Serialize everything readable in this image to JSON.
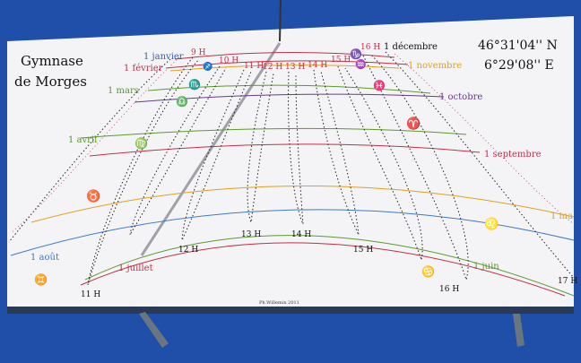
{
  "school": [
    "Gymnase",
    "de Morges"
  ],
  "coords": {
    "lat": "46°31'04'' N",
    "lon": "6°29'08'' E"
  },
  "signature": "Ph.Willemin 2011",
  "hours_top": [
    "9 H",
    "10 H",
    "11 H",
    "12 H",
    "13 H",
    "14 H",
    "15 H",
    "16 H"
  ],
  "hours_bottom": [
    "11 H",
    "12 H",
    "13 H",
    "14 H",
    "15 H",
    "16 H",
    "17 H"
  ],
  "months": {
    "janvier": "1 janvier",
    "fevrier": "1 février",
    "mars": "1 mars",
    "avril": "1 avril",
    "mai": "1 ma",
    "juin": "1 juin",
    "juillet": "1 juillet",
    "aout": "1 août",
    "septembre": "1 septembre",
    "octobre": "1 octobre",
    "novembre": "1 novembre",
    "decembre": "1 décembre"
  },
  "zodiac_glyphs": {
    "capricorn": "♑",
    "aquarius": "♒",
    "pisces": "♓",
    "aries": "♈",
    "taurus": "♉",
    "gemini": "♊",
    "cancer": "♋",
    "leo": "♌",
    "virgo": "♍",
    "libra": "♎",
    "scorpio": "♏",
    "sagittarius": "♐"
  },
  "colors": {
    "sky": "#1f4fa8",
    "board": "#f4f4f6",
    "hour_line": "#222222",
    "winter_curve": "#c0304a",
    "orange_curve": "#e0a020",
    "green_curve": "#5a9a2a",
    "purple_curve": "#6a3a8a",
    "blue_curve": "#3a7ac8",
    "label_blue": "#3a5ab0"
  }
}
